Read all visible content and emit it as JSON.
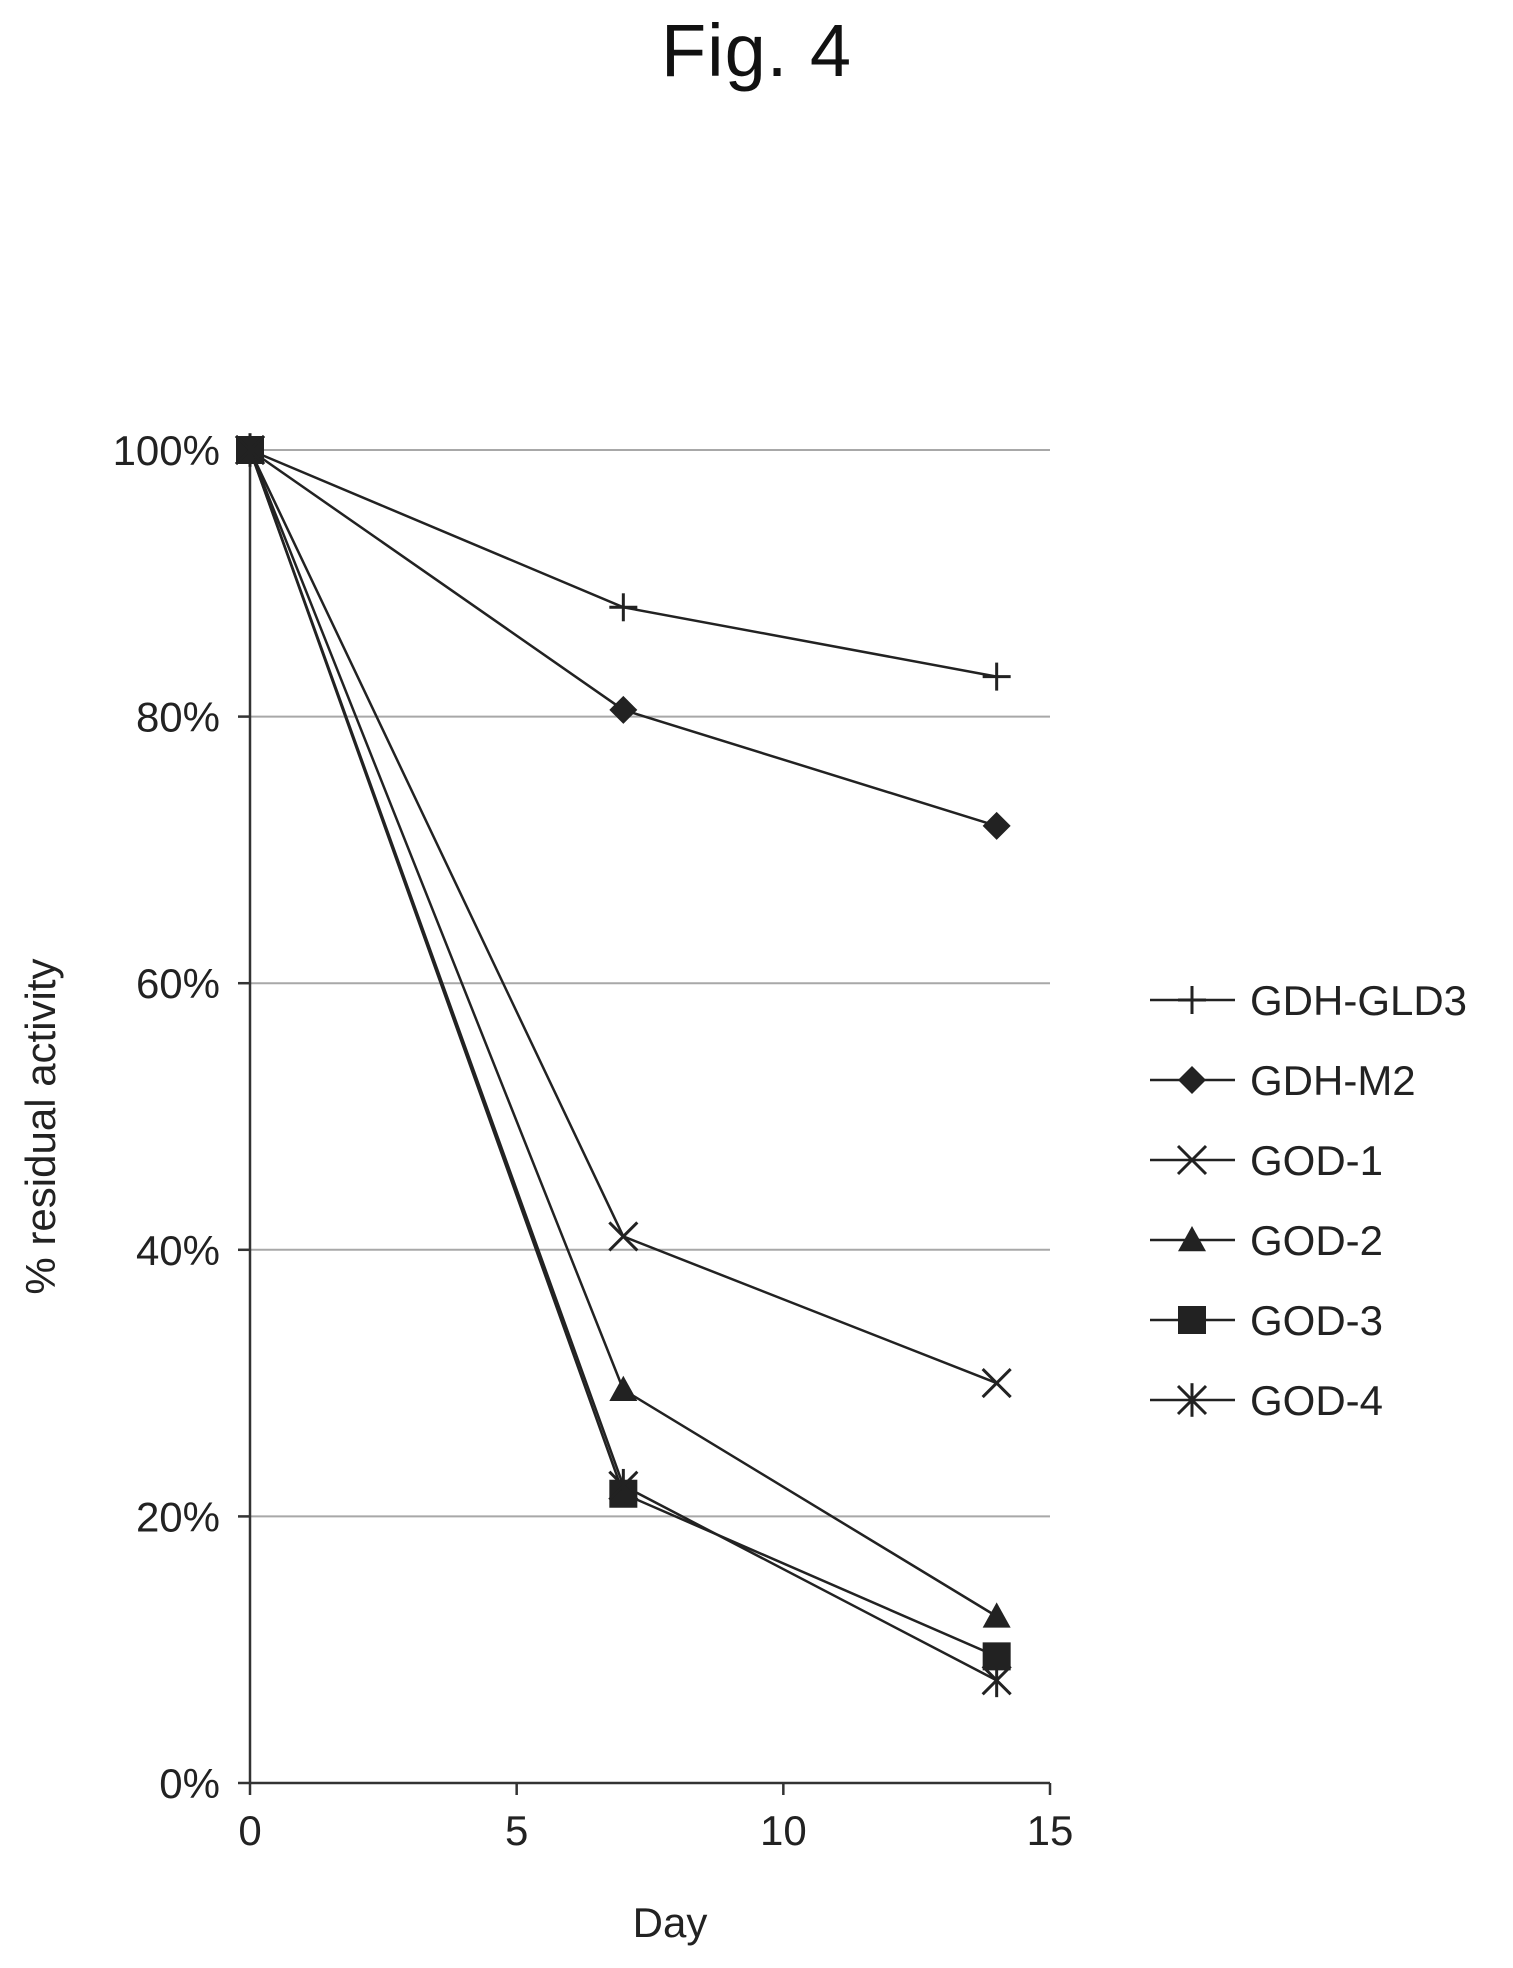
{
  "figure_title": "Fig. 4",
  "chart_data": {
    "type": "line",
    "xlabel": "Day",
    "ylabel": "% residual activity",
    "xlim": [
      0,
      15
    ],
    "ylim": [
      0,
      100
    ],
    "x_ticks": [
      0,
      5,
      10,
      15
    ],
    "y_ticks": [
      0,
      20,
      40,
      60,
      80,
      100
    ],
    "x_tick_labels": [
      "0",
      "5",
      "10",
      "15"
    ],
    "y_tick_labels": [
      "0%",
      "20%",
      "40%",
      "60%",
      "80%",
      "100%"
    ],
    "grid": "horizontal",
    "legend_position": "right",
    "series": [
      {
        "name": "GDH-GLD3",
        "marker": "plus",
        "x": [
          0,
          7,
          14
        ],
        "y": [
          100,
          88.2,
          83
        ]
      },
      {
        "name": "GDH-M2",
        "marker": "diamond",
        "x": [
          0,
          7,
          14
        ],
        "y": [
          100,
          80.5,
          71.8
        ]
      },
      {
        "name": "GOD-1",
        "marker": "x",
        "x": [
          0,
          7,
          14
        ],
        "y": [
          100,
          41,
          30
        ]
      },
      {
        "name": "GOD-2",
        "marker": "triangle",
        "x": [
          0,
          7,
          14
        ],
        "y": [
          100,
          29.5,
          12.5
        ]
      },
      {
        "name": "GOD-3",
        "marker": "square",
        "x": [
          0,
          7,
          14
        ],
        "y": [
          100,
          21.7,
          9.5
        ]
      },
      {
        "name": "GOD-4",
        "marker": "asterisk",
        "x": [
          0,
          7,
          14
        ],
        "y": [
          100,
          22.3,
          7.7
        ]
      }
    ],
    "colors": {
      "line": "#222222",
      "grid": "#a8a8a8",
      "axis": "#333333"
    }
  }
}
